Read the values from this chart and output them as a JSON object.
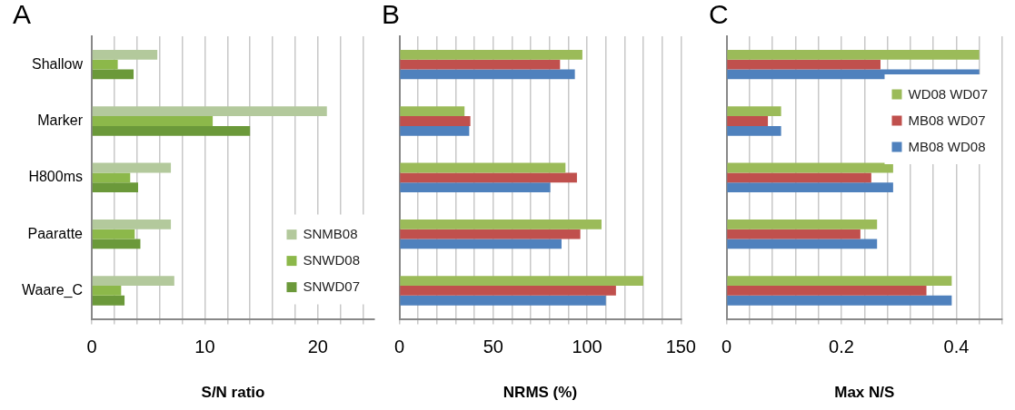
{
  "chart_data": [
    {
      "type": "bar",
      "orientation": "horizontal",
      "title": "A",
      "xlabel": "S/N ratio",
      "categories": [
        "Shallow",
        "Marker",
        "H800ms",
        "Paaratte",
        "Waare_C"
      ],
      "series": [
        {
          "name": "SNMB08",
          "color": "#b3c99c",
          "values": [
            5.8,
            20.8,
            7.0,
            7.0,
            7.3
          ]
        },
        {
          "name": "SNWD08",
          "color": "#8cb84a",
          "values": [
            2.3,
            10.7,
            3.4,
            3.8,
            2.6
          ]
        },
        {
          "name": "SNWD07",
          "color": "#6b993a",
          "values": [
            3.7,
            14.0,
            4.1,
            4.3,
            2.9
          ]
        }
      ],
      "xlim": [
        0,
        25
      ],
      "xticks": [
        0,
        {
          "value": 2,
          "label": null
        },
        {
          "value": 4,
          "label": null
        },
        {
          "value": 6,
          "label": null
        },
        {
          "value": 8,
          "label": null
        },
        10,
        {
          "value": 12,
          "label": null
        },
        {
          "value": 14,
          "label": null
        },
        {
          "value": 16,
          "label": null
        },
        {
          "value": 18,
          "label": null
        },
        20,
        {
          "value": 22,
          "label": null
        },
        {
          "value": 24,
          "label": null
        }
      ],
      "grid": "x",
      "legend": "bottom right"
    },
    {
      "type": "bar",
      "orientation": "horizontal",
      "title": "B",
      "xlabel": "NRMS (%)",
      "categories": [
        null,
        null,
        null,
        null,
        null
      ],
      "series": [
        {
          "color": "#9bbb59",
          "values": [
            97.5,
            34.7,
            88.5,
            107.7,
            130
          ]
        },
        {
          "color": "#c0504d",
          "values": [
            85.6,
            37.8,
            94.6,
            96.4,
            115.4
          ]
        },
        {
          "color": "#4f81bd",
          "values": [
            93.5,
            37.2,
            80.4,
            86.4,
            110
          ]
        }
      ],
      "xlim": [
        0,
        150
      ],
      "xticks": [
        0,
        {
          "value": 10,
          "label": null
        },
        {
          "value": 20,
          "label": null
        },
        {
          "value": 30,
          "label": null
        },
        {
          "value": 40,
          "label": null
        },
        50,
        {
          "value": 60,
          "label": null
        },
        {
          "value": 70,
          "label": null
        },
        {
          "value": 80,
          "label": null
        },
        {
          "value": 90,
          "label": null
        },
        100,
        {
          "value": 110,
          "label": null
        },
        {
          "value": 120,
          "label": null
        },
        {
          "value": 130,
          "label": null
        },
        {
          "value": 140,
          "label": null
        },
        150
      ],
      "grid": "x",
      "tick_labels": "x"
    },
    {
      "type": "bar",
      "orientation": "horizontal",
      "title": "C",
      "xlabel": "Max N/S",
      "categories": [
        null,
        null,
        null,
        null,
        null
      ],
      "series": [
        {
          "name": "WD08 WD07",
          "color": "#9bbb59",
          "values": [
            0.44,
            0.095,
            0.29,
            0.262,
            0.392
          ]
        },
        {
          "name": "MB08 WD07",
          "color": "#c0504d",
          "values": [
            0.268,
            0.072,
            0.252,
            0.233,
            0.348
          ]
        },
        {
          "name": "MB08 WD08",
          "color": "#4f81bd",
          "values": [
            0.44,
            0.095,
            0.29,
            0.262,
            0.392
          ]
        }
      ],
      "xlim": [
        0,
        0.48
      ],
      "xticks": [
        0,
        {
          "value": 0.04,
          "label": null
        },
        {
          "value": 0.08,
          "label": null
        },
        {
          "value": 0.12,
          "label": null
        },
        {
          "value": 0.16,
          "label": null
        },
        0.2,
        {
          "value": 0.24,
          "label": null
        },
        {
          "value": 0.28,
          "label": null
        },
        {
          "value": 0.32,
          "label": null
        },
        {
          "value": 0.36,
          "label": null
        },
        0.4,
        {
          "value": 0.44,
          "label": null
        },
        {
          "value": 0.48,
          "label": null
        }
      ],
      "grid": "x",
      "tick_labels": "x",
      "legend": "top right"
    }
  ]
}
